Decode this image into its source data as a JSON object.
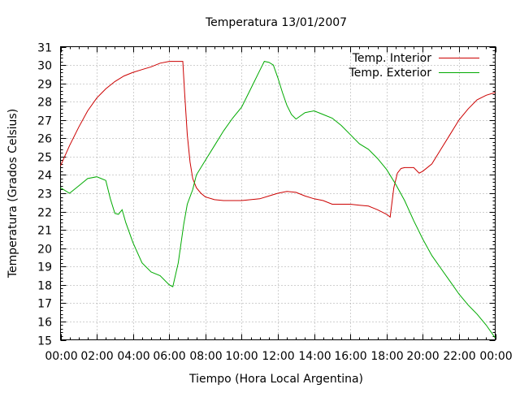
{
  "chart_data": {
    "type": "line",
    "title": "Temperatura 13/01/2007",
    "xlabel": "Tiempo (Hora Local Argentina)",
    "ylabel": "Temperatura (Grados Celsius)",
    "xlim": [
      0,
      24
    ],
    "ylim": [
      15,
      31
    ],
    "x_ticks": [
      "00:00",
      "02:00",
      "04:00",
      "06:00",
      "08:00",
      "10:00",
      "12:00",
      "14:00",
      "16:00",
      "18:00",
      "20:00",
      "22:00",
      "00:00"
    ],
    "y_ticks": [
      "15",
      "16",
      "17",
      "18",
      "19",
      "20",
      "21",
      "22",
      "23",
      "24",
      "25",
      "26",
      "27",
      "28",
      "29",
      "30",
      "31"
    ],
    "grid": true,
    "legend_position": "top-right",
    "series": [
      {
        "name": "Temp. Interior",
        "color": "#cc0000",
        "x": [
          0,
          0.5,
          1,
          1.5,
          2,
          2.5,
          3,
          3.5,
          4,
          4.5,
          5,
          5.5,
          6,
          6.5,
          6.75,
          6.85,
          7,
          7.15,
          7.3,
          7.5,
          7.75,
          8,
          8.5,
          9,
          10,
          11,
          11.5,
          12,
          12.5,
          13,
          13.5,
          14,
          14.5,
          15,
          15.5,
          16,
          16.5,
          17,
          17.5,
          18,
          18.2,
          18.4,
          18.6,
          18.8,
          19,
          19.5,
          19.8,
          20,
          20.5,
          21,
          21.5,
          22,
          22.5,
          23,
          23.5,
          24
        ],
        "y": [
          24.5,
          25.6,
          26.6,
          27.5,
          28.2,
          28.7,
          29.1,
          29.4,
          29.6,
          29.75,
          29.9,
          30.1,
          30.2,
          30.2,
          30.2,
          28.5,
          26.2,
          24.7,
          23.8,
          23.3,
          23.0,
          22.8,
          22.65,
          22.6,
          22.6,
          22.7,
          22.85,
          23.0,
          23.1,
          23.05,
          22.85,
          22.7,
          22.6,
          22.4,
          22.4,
          22.4,
          22.35,
          22.3,
          22.1,
          21.85,
          21.7,
          23.3,
          24.1,
          24.35,
          24.4,
          24.4,
          24.1,
          24.2,
          24.6,
          25.4,
          26.2,
          27.0,
          27.6,
          28.1,
          28.35,
          28.5
        ]
      },
      {
        "name": "Temp. Exterior",
        "color": "#00aa00",
        "x": [
          0,
          0.5,
          1,
          1.5,
          2,
          2.5,
          2.75,
          3,
          3.2,
          3.4,
          3.6,
          4,
          4.5,
          5,
          5.5,
          6,
          6.2,
          6.5,
          6.8,
          7,
          7.3,
          7.5,
          8,
          8.5,
          9,
          9.5,
          10,
          10.5,
          11,
          11.25,
          11.5,
          11.75,
          12,
          12.25,
          12.5,
          12.75,
          13,
          13.5,
          14,
          14.5,
          15,
          15.5,
          16,
          16.5,
          17,
          17.5,
          18,
          18.5,
          19,
          19.5,
          20,
          20.5,
          21,
          21.5,
          22,
          22.5,
          23,
          23.5,
          24
        ],
        "y": [
          23.3,
          23.0,
          23.4,
          23.8,
          23.9,
          23.7,
          22.7,
          21.9,
          21.85,
          22.1,
          21.4,
          20.3,
          19.2,
          18.7,
          18.5,
          18.0,
          17.9,
          19.2,
          21.3,
          22.4,
          23.2,
          24.0,
          24.8,
          25.6,
          26.4,
          27.1,
          27.7,
          28.7,
          29.7,
          30.2,
          30.15,
          30.0,
          29.3,
          28.5,
          27.8,
          27.3,
          27.05,
          27.4,
          27.5,
          27.3,
          27.1,
          26.7,
          26.2,
          25.7,
          25.4,
          24.9,
          24.3,
          23.5,
          22.6,
          21.5,
          20.5,
          19.6,
          18.9,
          18.2,
          17.5,
          16.9,
          16.4,
          15.8,
          15.1
        ]
      }
    ]
  }
}
